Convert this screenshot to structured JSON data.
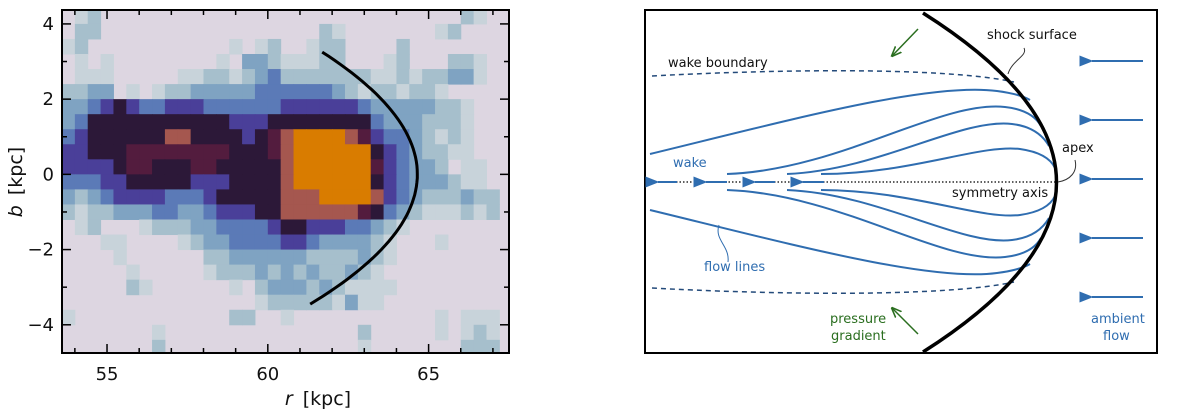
{
  "chart_data": {
    "type": "heatmap",
    "xlabel_var": "r",
    "xlabel_unit": "[kpc]",
    "ylabel_var": "b",
    "ylabel_unit": "[kpc]",
    "xlim": [
      53.6,
      67.5
    ],
    "ylim": [
      -4.75,
      4.37
    ],
    "xticks": [
      55,
      60,
      65
    ],
    "xtick_labels": [
      "55",
      "60",
      "65"
    ],
    "yticks": [
      4,
      2,
      0,
      -2,
      -4
    ],
    "ytick_labels": [
      "4",
      "2",
      "0",
      "−2",
      "−4"
    ],
    "grid": false,
    "cell_r_start": 53.6,
    "cell_b_start": 4.4,
    "cell_size_kpc": 0.4,
    "level_colors": [
      "#ddd6e1",
      "#c8d3da",
      "#a6bfcc",
      "#7fa3c2",
      "#5b7ab7",
      "#4a3f99",
      "#2c1838",
      "#531c3e",
      "#a5574f",
      "#d97c00"
    ],
    "levels": [
      "0120000000000000000000000000000210",
      "0220000000000000000021000000012000",
      "1200000000000101200122000020000000",
      "0101000000001033211122000120002210",
      "0111000001122123422222221121223310",
      "2233010122333334444443212212210000",
      "3345654455544444455555543333322100",
      "3466666666666555666666664333222100",
      "4566666688666656789999875443212100",
      "5566677777777666789999996543221100",
      "5555677666776666689999997543320110",
      "4445566666555666689999996543332110",
      "3234555544456666688899998543222322",
      "2122333443345556688888876432111212",
      "0120001222334444566555443210000000",
      "0001100001233444455433332100010000",
      "0000100000022333333222232100000000",
      "0000010000012223232322321000000000",
      "0000021000000102333232111100000000",
      "0000000000000001222221311000000000",
      "1000000000000220010000000000010111",
      "0000000100000000000000020000010121",
      "0000000200000000000000010000000222"
    ],
    "overlay_curve": {
      "shape": "parabola",
      "apex_r": 64.65,
      "curvature": 0.28,
      "b_range": [
        -3.45,
        3.25
      ],
      "color": "#000000"
    }
  },
  "diagram": {
    "labels": {
      "shock_surface": "shock surface",
      "wake_boundary": "wake boundary",
      "apex": "apex",
      "wake": "wake",
      "symmetry_axis": "symmetry axis",
      "flow_lines": "flow lines",
      "pressure_gradient_1": "pressure",
      "pressure_gradient_2": "gradient",
      "ambient_flow_1": "ambient",
      "ambient_flow_2": "flow"
    },
    "colors": {
      "flow": "#2f6db0",
      "pressure": "#2a6e1f",
      "shock": "#000000",
      "text": "#111111"
    }
  }
}
